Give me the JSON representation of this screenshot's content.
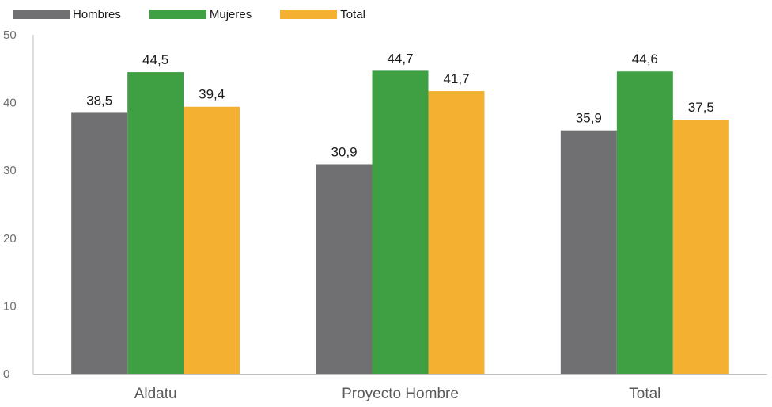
{
  "chart_data": {
    "type": "bar",
    "categories": [
      "Aldatu",
      "Proyecto Hombre",
      "Total"
    ],
    "series": [
      {
        "name": "Hombres",
        "color": "#707072",
        "values": [
          38.5,
          30.9,
          35.9
        ],
        "labels": [
          "38,5",
          "30,9",
          "35,9"
        ]
      },
      {
        "name": "Mujeres",
        "color": "#3ea043",
        "values": [
          44.5,
          44.7,
          44.6
        ],
        "labels": [
          "44,5",
          "44,7",
          "44,6"
        ]
      },
      {
        "name": "Total",
        "color": "#f4b030",
        "values": [
          39.4,
          41.7,
          37.5
        ],
        "labels": [
          "39,4",
          "41,7",
          "37,5"
        ]
      }
    ],
    "ylim": [
      0,
      50
    ],
    "yticks": [
      0,
      10,
      20,
      30,
      40,
      50
    ],
    "ytick_labels": [
      "0",
      "10",
      "20",
      "30",
      "40",
      "50"
    ],
    "title": "",
    "xlabel": "",
    "ylabel": "",
    "grid": false,
    "legend_position": "top-left"
  }
}
